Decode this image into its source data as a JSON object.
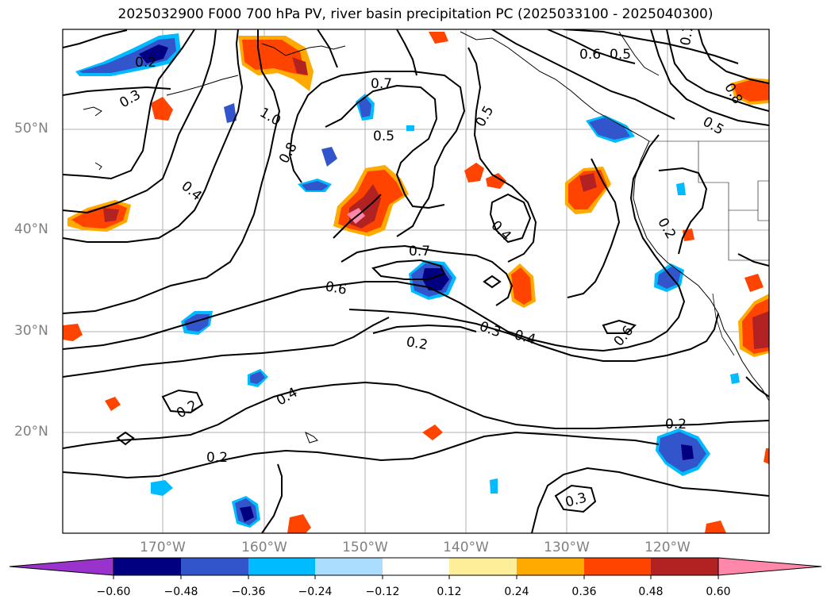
{
  "title": "2025032900 F000 700 hPa PV, river basin precipitation PC (2025033100 - 2025040300)",
  "lat_labels": [
    "50°N",
    "40°N",
    "30°N",
    "20°N"
  ],
  "lon_labels": [
    "170°W",
    "160°W",
    "150°W",
    "140°W",
    "130°W",
    "120°W"
  ],
  "contour_labels": [
    "0.2",
    "0.3",
    "1.0",
    "0.8",
    "0.4",
    "0.7",
    "0.5",
    "0.5",
    "0.6",
    "0.5",
    "0.7",
    "0.8",
    "0.5",
    "0.2",
    "0.7",
    "0.4",
    "0.6",
    "0.3",
    "0.4",
    "0.2",
    "0.6",
    "0.4",
    "0.2",
    "0.2",
    "0.2",
    "0.3"
  ],
  "colorbar": {
    "tick_labels": [
      "−0.60",
      "−0.48",
      "−0.36",
      "−0.24",
      "−0.12",
      "0.12",
      "0.24",
      "0.36",
      "0.48",
      "0.60"
    ],
    "colors": [
      "#9933cc",
      "#000080",
      "#3355cc",
      "#00bbff",
      "#aaddff",
      "#ffffff",
      "#ffee99",
      "#ffaa00",
      "#ff4400",
      "#b22222",
      "#ff88aa"
    ]
  },
  "colors": {
    "contour": "#000000",
    "grid": "#b0b0b0",
    "axis_label": "#808080"
  }
}
